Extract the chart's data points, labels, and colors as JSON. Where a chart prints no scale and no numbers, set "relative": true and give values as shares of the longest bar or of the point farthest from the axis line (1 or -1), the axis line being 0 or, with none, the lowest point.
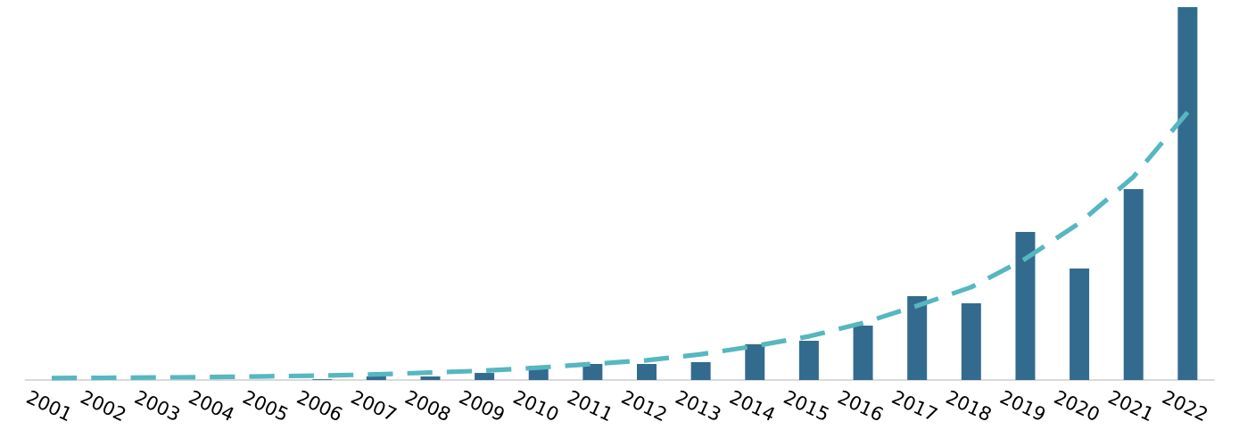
{
  "chart_data": {
    "type": "bar",
    "relative": true,
    "categories": [
      "2001",
      "2002",
      "2003",
      "2004",
      "2005",
      "2006",
      "2007",
      "2008",
      "2009",
      "2010",
      "2011",
      "2012",
      "2013",
      "2014",
      "2015",
      "2016",
      "2017",
      "2018",
      "2019",
      "2020",
      "2021",
      "2022"
    ],
    "series": [
      {
        "color": "#336b8f",
        "values": [
          0,
          0.002,
          0,
          0,
          0,
          0.002,
          0.0096,
          0.0096,
          0.019,
          0.038,
          0.043,
          0.043,
          0.048,
          0.096,
          0.105,
          0.146,
          0.225,
          0.206,
          0.397,
          0.299,
          0.512,
          1
        ]
      },
      {
        "type": "line",
        "color": "#56b7c0",
        "line_style": "dashed",
        "values": [
          0.005,
          0.006,
          0.007,
          0.008,
          0.01,
          0.012,
          0.015,
          0.02,
          0.025,
          0.033,
          0.043,
          0.053,
          0.069,
          0.091,
          0.117,
          0.153,
          0.199,
          0.249,
          0.325,
          0.421,
          0.545,
          0.718
        ]
      }
    ]
  }
}
